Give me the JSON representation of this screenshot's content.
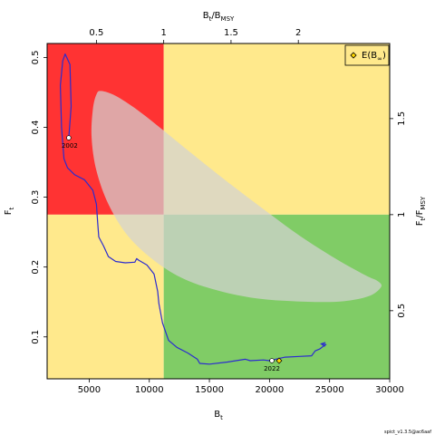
{
  "chart_data": {
    "type": "line",
    "xlabel": {
      "main": "B",
      "sub": "t"
    },
    "ylabel": {
      "main": "F",
      "sub": "t"
    },
    "x2label": {
      "main": "B",
      "sub1": "t",
      "mid": "/B",
      "sub2": "MSY"
    },
    "y2label": {
      "main": "F",
      "sub1": "t",
      "mid": "/F",
      "sub2": "MSY"
    },
    "xlim": [
      1500,
      30000
    ],
    "ylim": [
      0.04,
      0.52
    ],
    "x_ticks": [
      5000,
      10000,
      15000,
      20000,
      25000,
      30000
    ],
    "x_tick_labels": [
      "5000",
      "10000",
      "15000",
      "20000",
      "25000",
      "30000"
    ],
    "y_ticks": [
      0.1,
      0.2,
      0.3,
      0.4,
      0.5
    ],
    "y_tick_labels": [
      "0.1",
      "0.2",
      "0.3",
      "0.4",
      "0.5"
    ],
    "x2_ticks_ratio": [
      0.5,
      1,
      1.5,
      2
    ],
    "x2_tick_labels": [
      "0.5",
      "1",
      "1.5",
      "2"
    ],
    "y2_ticks_ratio": [
      0.5,
      1,
      1.5
    ],
    "y2_tick_labels": [
      "0.5",
      "1",
      "1.5"
    ],
    "bmsy": 11200,
    "fmsy": 0.275,
    "grid": false,
    "region_colors": {
      "overfished_overfishing": "#ff3333",
      "caution": "#ffe98c",
      "healthy": "#80cc66"
    },
    "ellipse_color": "#d3d3d3",
    "line_color": "#2b2bd0",
    "ci_ellipse": [
      [
        6000,
        0.452
      ],
      [
        7200,
        0.445
      ],
      [
        9000,
        0.425
      ],
      [
        11000,
        0.398
      ],
      [
        13500,
        0.363
      ],
      [
        16500,
        0.322
      ],
      [
        19500,
        0.283
      ],
      [
        22500,
        0.245
      ],
      [
        25500,
        0.212
      ],
      [
        28000,
        0.188
      ],
      [
        29000,
        0.18
      ],
      [
        29300,
        0.172
      ],
      [
        28500,
        0.16
      ],
      [
        27000,
        0.153
      ],
      [
        25000,
        0.15
      ],
      [
        22000,
        0.151
      ],
      [
        19000,
        0.155
      ],
      [
        16000,
        0.165
      ],
      [
        13000,
        0.182
      ],
      [
        10500,
        0.208
      ],
      [
        8200,
        0.245
      ],
      [
        6600,
        0.29
      ],
      [
        5600,
        0.338
      ],
      [
        5200,
        0.385
      ],
      [
        5300,
        0.425
      ],
      [
        5600,
        0.447
      ]
    ],
    "trajectory": [
      [
        3300,
        0.385
      ],
      [
        3500,
        0.43
      ],
      [
        3400,
        0.49
      ],
      [
        3000,
        0.505
      ],
      [
        2800,
        0.495
      ],
      [
        2600,
        0.46
      ],
      [
        2700,
        0.4
      ],
      [
        2900,
        0.355
      ],
      [
        3200,
        0.342
      ],
      [
        3800,
        0.332
      ],
      [
        4600,
        0.325
      ],
      [
        5300,
        0.31
      ],
      [
        5600,
        0.29
      ],
      [
        5700,
        0.265
      ],
      [
        5800,
        0.243
      ],
      [
        6200,
        0.23
      ],
      [
        6600,
        0.215
      ],
      [
        7200,
        0.208
      ],
      [
        8000,
        0.206
      ],
      [
        8800,
        0.207
      ],
      [
        8950,
        0.212
      ],
      [
        9100,
        0.21
      ],
      [
        9800,
        0.203
      ],
      [
        10400,
        0.19
      ],
      [
        10700,
        0.165
      ],
      [
        10800,
        0.148
      ],
      [
        11100,
        0.12
      ],
      [
        11600,
        0.095
      ],
      [
        12300,
        0.085
      ],
      [
        13200,
        0.077
      ],
      [
        14000,
        0.068
      ],
      [
        14200,
        0.062
      ],
      [
        15000,
        0.061
      ],
      [
        16500,
        0.064
      ],
      [
        18000,
        0.068
      ],
      [
        18400,
        0.066
      ],
      [
        19500,
        0.067
      ],
      [
        20000,
        0.066
      ],
      [
        20500,
        0.068
      ],
      [
        21300,
        0.071
      ],
      [
        22500,
        0.072
      ],
      [
        23500,
        0.073
      ],
      [
        23800,
        0.08
      ],
      [
        24200,
        0.083
      ],
      [
        24500,
        0.087
      ],
      [
        24700,
        0.089
      ],
      [
        24300,
        0.09
      ]
    ],
    "point_2002": {
      "x": 3300,
      "y": 0.385,
      "label": "2002"
    },
    "point_2022": {
      "x": 20200,
      "y": 0.066,
      "label": "2022"
    },
    "point_equilibrium": {
      "x": 20800,
      "y": 0.066
    },
    "legend": {
      "position": "top-right",
      "entries": [
        {
          "main": "E(B",
          "sub": "∞",
          "close": ")"
        }
      ]
    },
    "credit": "spict_v1.3.5@ac6aaf"
  }
}
